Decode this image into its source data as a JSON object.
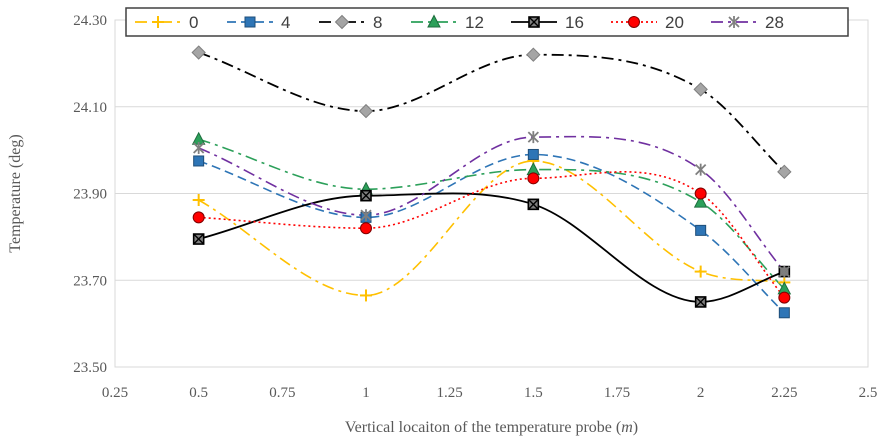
{
  "chart_data": {
    "type": "line",
    "title": "",
    "xlabel": "Vertical locaiton of the temperature probe (",
    "xlabel_unit": "m",
    "xlabel_close": ")",
    "ylabel": "Temperature (deg)",
    "xlim": [
      0.25,
      2.5
    ],
    "ylim": [
      23.5,
      24.3
    ],
    "x_ticks": [
      "0.25",
      "0.5",
      "0.75",
      "1",
      "1.25",
      "1.5",
      "1.75",
      "2",
      "2.25",
      "2.5"
    ],
    "y_ticks": [
      "23.50",
      "23.70",
      "23.90",
      "24.10",
      "24.30"
    ],
    "grid": "horizontal",
    "legend_position": "top",
    "x": [
      0.5,
      1,
      1.5,
      2,
      2.25
    ],
    "series": [
      {
        "name": "0",
        "values": [
          23.885,
          23.665,
          23.975,
          23.72,
          23.695
        ],
        "color": "#FFC000",
        "marker": "plus",
        "dash": "dashdot"
      },
      {
        "name": "4",
        "values": [
          23.975,
          23.845,
          23.99,
          23.815,
          23.625
        ],
        "color": "#2E75B6",
        "marker": "square",
        "dash": "dashed"
      },
      {
        "name": "8",
        "values": [
          24.225,
          24.09,
          24.22,
          24.14,
          23.95
        ],
        "color": "#000000",
        "marker": "diamond",
        "dash": "dashdot"
      },
      {
        "name": "12",
        "values": [
          24.025,
          23.91,
          23.955,
          23.88,
          23.68
        ],
        "color": "#2CA05A",
        "marker": "triangle",
        "dash": "dashdot"
      },
      {
        "name": "16",
        "values": [
          23.795,
          23.895,
          23.875,
          23.65,
          23.72
        ],
        "color": "#000000",
        "marker": "boxx",
        "dash": "solid"
      },
      {
        "name": "20",
        "values": [
          23.845,
          23.82,
          23.935,
          23.9,
          23.66
        ],
        "color": "#FF0000",
        "marker": "circle",
        "dash": "dotted"
      },
      {
        "name": "28",
        "values": [
          24.005,
          23.85,
          24.03,
          23.955,
          23.72
        ],
        "color": "#7030A0",
        "marker": "star",
        "dash": "dashdot"
      }
    ]
  }
}
